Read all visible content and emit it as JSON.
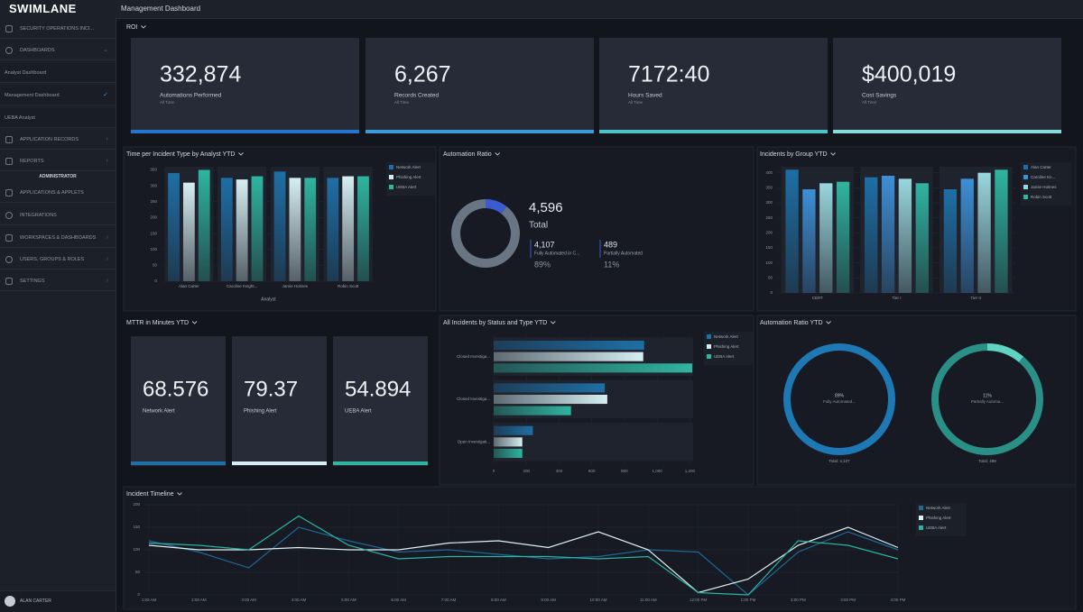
{
  "sidebar": {
    "logo": "SWIMLANE",
    "items": [
      "SECURITY OPERATIONS INCI...",
      "DASHBOARDS",
      "Analyst Dashboard",
      "Management Dashboard",
      "UEBA Analyst",
      "APPLICATION RECORDS",
      "REPORTS"
    ],
    "section": "ADMINISTRATOR",
    "admin_items": [
      "APPLICATIONS & APPLETS",
      "INTEGRATIONS",
      "WORKSPACES & DASHBOARDS",
      "USERS, GROUPS & ROLES",
      "SETTINGS"
    ],
    "user": "ALAN CARTER"
  },
  "header": {
    "title": "Management Dashboard"
  },
  "roi": {
    "title": "ROI",
    "cards": [
      {
        "value": "332,874",
        "label": "Automations Performed",
        "note": "All Time",
        "color": "#2474d0"
      },
      {
        "value": "6,267",
        "label": "Records Created",
        "note": "All Time",
        "color": "#3b9ad8"
      },
      {
        "value": "7172:40",
        "label": "Hours Saved",
        "note": "All Time",
        "color": "#4cc3c8"
      },
      {
        "value": "$400,019",
        "label": "Cost Savings",
        "note": "All Time",
        "color": "#86dbdb"
      }
    ]
  },
  "mttr": {
    "title": "MTTR in Minutes YTD",
    "cards": [
      {
        "value": "68.576",
        "label": "Network Alert",
        "color": "#1e6fa6"
      },
      {
        "value": "79.37",
        "label": "Phishing Alert",
        "color": "#d6eef2"
      },
      {
        "value": "54.894",
        "label": "UEBA Alert",
        "color": "#2fb5a0"
      }
    ]
  },
  "charts": [
    {
      "type": "bar",
      "title": "Time per Incident Type by Analyst YTD",
      "x_label": "Analyst",
      "categories": [
        "Alan Carter",
        "Caroline Knight...",
        "Jamie Holmes",
        "Robin Scott"
      ],
      "series": [
        {
          "name": "Network Alert",
          "color": "#1e6fa6",
          "values": [
            340,
            325,
            345,
            325
          ]
        },
        {
          "name": "Phishing Alert",
          "color": "#d6eef2",
          "values": [
            310,
            320,
            325,
            330
          ]
        },
        {
          "name": "UEBA Alert",
          "color": "#2fb5a0",
          "values": [
            350,
            330,
            325,
            330
          ]
        }
      ],
      "ylim": [
        0,
        360
      ],
      "yticks": [
        0,
        50,
        100,
        150,
        200,
        250,
        300,
        350
      ]
    },
    {
      "type": "donut",
      "title": "Automation Ratio",
      "total": 4596,
      "total_label": "4,596",
      "total_text": "Total",
      "categories": [
        "Fully Automated in C...",
        "Partially Automated"
      ],
      "values": [
        4107,
        489
      ],
      "value_labels": [
        "4,107",
        "489"
      ],
      "percents": [
        89,
        11
      ],
      "percent_labels": [
        "89%",
        "11%"
      ],
      "colors": [
        "#6a7584",
        "#3d5bd0"
      ]
    },
    {
      "type": "bar",
      "title": "Incidents by Group YTD",
      "categories": [
        "CERT",
        "Tier I",
        "Tier II"
      ],
      "series": [
        {
          "name": "Alan Carter",
          "color": "#1e6fa6",
          "values": [
            410,
            385,
            345
          ]
        },
        {
          "name": "Caroline Kn...",
          "color": "#3d8fd6",
          "values": [
            345,
            390,
            380
          ]
        },
        {
          "name": "Jamie Holmes",
          "color": "#9ad6de",
          "values": [
            365,
            380,
            400
          ]
        },
        {
          "name": "Robin Scott",
          "color": "#2fb5a0",
          "values": [
            370,
            365,
            410
          ]
        }
      ],
      "ylim": [
        0,
        420
      ],
      "yticks": [
        0,
        50,
        100,
        150,
        200,
        250,
        300,
        350,
        400
      ]
    },
    {
      "type": "hbar",
      "title": "All Incidents by Status and Type YTD",
      "categories": [
        "Closed Investiga...",
        "Closed Investiga...",
        "Open Investigati..."
      ],
      "series": [
        {
          "name": "Network Alert",
          "color": "#1e6fa6",
          "values": [
            920,
            680,
            240
          ]
        },
        {
          "name": "Phishing Alert",
          "color": "#d6eef2",
          "values": [
            915,
            695,
            175
          ]
        },
        {
          "name": "UEBA Alert",
          "color": "#2fb5a0",
          "values": [
            1215,
            473,
            175
          ]
        }
      ],
      "xlim": [
        0,
        1220
      ],
      "xticks": [
        0,
        200,
        400,
        600,
        800,
        {
          "value": 1000,
          "label": "1,000"
        },
        {
          "value": 1200,
          "label": "1,200"
        }
      ]
    },
    {
      "type": "rings",
      "title": "Automation Ratio YTD",
      "rings": [
        {
          "percent": "89%",
          "label": "Fully Automated...",
          "total": "Total: 4,107",
          "color": "#1e78b4"
        },
        {
          "percent": "11%",
          "label": "Partially Automa...",
          "total": "Total: 489",
          "color": "#2a8f86"
        }
      ]
    },
    {
      "type": "line",
      "title": "Incident Timeline",
      "x": [
        "1:00 AM",
        "2:00 AM",
        "3:00 AM",
        "4:00 AM",
        "5:00 AM",
        "6:00 AM",
        "7:00 AM",
        "8:00 AM",
        "9:00 AM",
        "10:00 AM",
        "11:00 AM",
        "12:00 PM",
        "1:00 PM",
        "2:00 PM",
        "3:00 PM",
        "4:00 PM"
      ],
      "series": [
        {
          "name": "Network Alert",
          "color": "#1f6796",
          "values": [
            120,
            95,
            60,
            150,
            120,
            95,
            100,
            90,
            80,
            85,
            100,
            95,
            0,
            95,
            140,
            100
          ]
        },
        {
          "name": "Phishing Alert",
          "color": "#dfeff2",
          "values": [
            110,
            100,
            100,
            105,
            100,
            100,
            115,
            120,
            105,
            140,
            100,
            5,
            35,
            110,
            150,
            105
          ]
        },
        {
          "name": "UEBA Alert",
          "color": "#2bb3a3",
          "values": [
            115,
            110,
            100,
            175,
            110,
            80,
            85,
            85,
            85,
            80,
            85,
            5,
            0,
            120,
            110,
            80
          ]
        }
      ],
      "ylim": [
        0,
        200
      ],
      "yticks": [
        0,
        50,
        100,
        150,
        200
      ]
    }
  ]
}
